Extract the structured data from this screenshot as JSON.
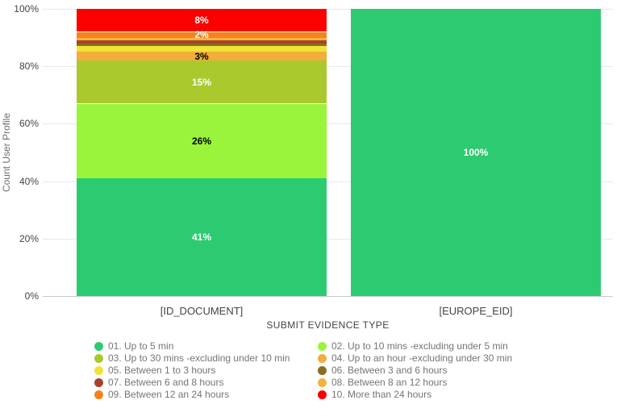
{
  "chart_data": {
    "type": "bar",
    "variant": "stacked-100-percent-column",
    "title": "",
    "xlabel": "SUBMIT EVIDENCE TYPE",
    "ylabel": "Count User Profile",
    "ylim": [
      0,
      100
    ],
    "grid": true,
    "legend_position": "bottom",
    "legend_columns": 2,
    "yticks": [
      {
        "value": 0,
        "label": "0%"
      },
      {
        "value": 20,
        "label": "20%"
      },
      {
        "value": 40,
        "label": "40%"
      },
      {
        "value": 60,
        "label": "60%"
      },
      {
        "value": 80,
        "label": "80%"
      },
      {
        "value": 100,
        "label": "100%"
      }
    ],
    "categories": [
      "[ID_DOCUMENT]",
      "[EUROPE_EID]"
    ],
    "series": [
      {
        "name": "01. Up to 5 min",
        "color": "#2dcb71",
        "values": [
          41,
          100
        ],
        "labels": [
          "41%",
          "100%"
        ],
        "label_colors": [
          "#ffffff",
          "#ffffff"
        ]
      },
      {
        "name": "02. Up to 10 mins -excluding under 5 min",
        "color": "#9bf43c",
        "values": [
          26,
          0
        ],
        "labels": [
          "26%",
          ""
        ],
        "label_colors": [
          "#000000",
          ""
        ]
      },
      {
        "name": "03. Up to 30 mins -excluding under 10 min",
        "color": "#a9c92d",
        "values": [
          15,
          0
        ],
        "labels": [
          "15%",
          ""
        ],
        "label_colors": [
          "#ffffff",
          ""
        ]
      },
      {
        "name": "04. Up to an hour -excluding under 30 min",
        "color": "#f2ae3b",
        "values": [
          3,
          0
        ],
        "labels": [
          "3%",
          ""
        ],
        "label_colors": [
          "#000000",
          ""
        ]
      },
      {
        "name": "05. Between 1 to 3 hours",
        "color": "#f1e238",
        "values": [
          2,
          0
        ],
        "labels": [
          "",
          ""
        ],
        "label_colors": [
          "",
          ""
        ]
      },
      {
        "name": "06. Between 3 and 6 hours",
        "color": "#8a6d1e",
        "values": [
          1,
          0
        ],
        "labels": [
          "",
          ""
        ],
        "label_colors": [
          "",
          ""
        ]
      },
      {
        "name": "07. Between 6 and 8 hours",
        "color": "#a6432a",
        "values": [
          1,
          0
        ],
        "labels": [
          "",
          ""
        ],
        "label_colors": [
          "",
          ""
        ]
      },
      {
        "name": "08. Between 8 an 12 hours",
        "color": "#f5b33c",
        "values": [
          1,
          0
        ],
        "labels": [
          "",
          ""
        ],
        "label_colors": [
          "",
          ""
        ]
      },
      {
        "name": "09. Between 12 an 24 hours",
        "color": "#f8821a",
        "values": [
          2,
          0
        ],
        "labels": [
          "2%",
          ""
        ],
        "label_colors": [
          "#ffffff",
          ""
        ]
      },
      {
        "name": "10. More than 24 hours",
        "color": "#fa0100",
        "values": [
          8,
          0
        ],
        "labels": [
          "8%",
          ""
        ],
        "label_colors": [
          "#ffffff",
          ""
        ]
      }
    ]
  }
}
